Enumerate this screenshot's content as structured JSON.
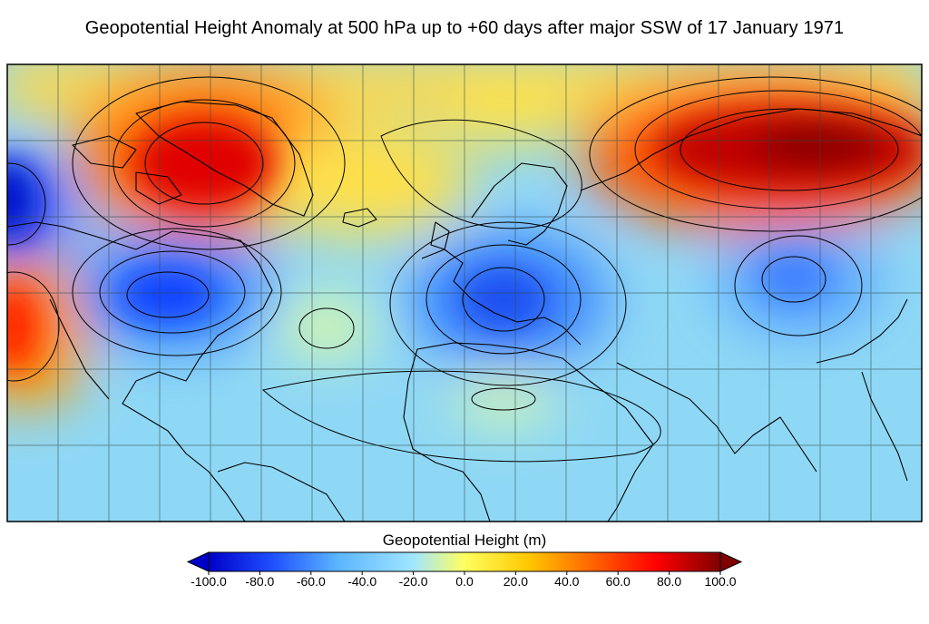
{
  "title": "Geopotential Height Anomaly at 500 hPa up to +60 days after major SSW of 17 January 1971",
  "colorbar": {
    "label": "Geopotential Height (m)",
    "min": -100,
    "max": 100,
    "extend": "both",
    "ticks": [
      {
        "value": -100,
        "label": "-100.0"
      },
      {
        "value": -80,
        "label": "-80.0"
      },
      {
        "value": -60,
        "label": "-60.0"
      },
      {
        "value": -40,
        "label": "-40.0"
      },
      {
        "value": -20,
        "label": "-20.0"
      },
      {
        "value": 0,
        "label": "0.0"
      },
      {
        "value": 20,
        "label": "20.0"
      },
      {
        "value": 40,
        "label": "40.0"
      },
      {
        "value": 60,
        "label": "60.0"
      },
      {
        "value": 80,
        "label": "80.0"
      },
      {
        "value": 100,
        "label": "100.0"
      }
    ],
    "colors": [
      "#0000c8",
      "#1f50ff",
      "#5ab4ff",
      "#a0e6ff",
      "#ffff60",
      "#ffc800",
      "#ff6400",
      "#ff0000",
      "#800000"
    ]
  },
  "map": {
    "projection": "equirectangular",
    "variable": "geopotential height anomaly",
    "level_hpa": 500,
    "anomaly_features": [
      {
        "region": "Greenland",
        "value": 85
      },
      {
        "region": "Siberia",
        "value": 95
      },
      {
        "region": "North Pacific off California",
        "value": 85
      },
      {
        "region": "Gulf of Alaska",
        "value": -95
      },
      {
        "region": "Eastern North America",
        "value": -80
      },
      {
        "region": "Central Europe / Mediterranean",
        "value": -80
      },
      {
        "region": "Central Asia",
        "value": -70
      },
      {
        "region": "Central Atlantic",
        "value": 12
      },
      {
        "region": "Sahara",
        "value": 8
      }
    ]
  }
}
